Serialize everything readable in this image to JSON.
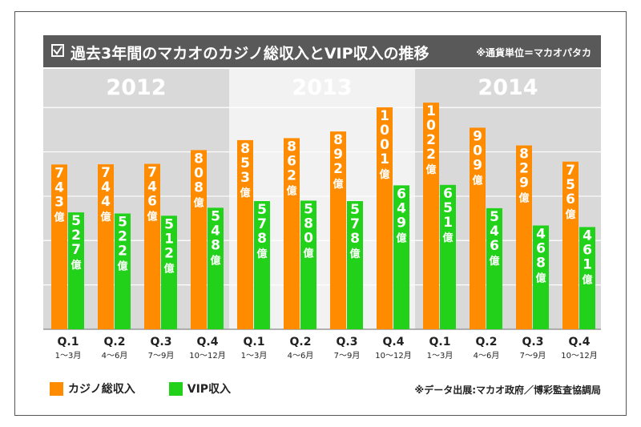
{
  "header": {
    "title": "過去3年間のマカオのカジノ総収入とVIP収入の推移",
    "currency_note": "※通貨単位＝マカオパタカ"
  },
  "legend": {
    "casino_label": "カジノ総収入",
    "vip_label": "VIP収入"
  },
  "source_note": "※データ出展:マカオ政府／博彩監査協調局",
  "colors": {
    "casino": "#FF8C00",
    "vip": "#22D11A",
    "title_bg": "#595959",
    "year_band_dark": "#D9D9D9",
    "year_band_light": "#F2F2F2"
  },
  "chart_data": {
    "type": "bar",
    "years": [
      "2012",
      "2013",
      "2014"
    ],
    "categories": [
      {
        "year": "2012",
        "quarter": "Q.1",
        "months": "1〜3月"
      },
      {
        "year": "2012",
        "quarter": "Q.2",
        "months": "4〜6月"
      },
      {
        "year": "2012",
        "quarter": "Q.3",
        "months": "7〜9月"
      },
      {
        "year": "2012",
        "quarter": "Q.4",
        "months": "10〜12月"
      },
      {
        "year": "2013",
        "quarter": "Q.1",
        "months": "1〜3月"
      },
      {
        "year": "2013",
        "quarter": "Q.2",
        "months": "4〜6月"
      },
      {
        "year": "2013",
        "quarter": "Q.3",
        "months": "7〜9月"
      },
      {
        "year": "2013",
        "quarter": "Q.4",
        "months": "10〜12月"
      },
      {
        "year": "2014",
        "quarter": "Q.1",
        "months": "1〜3月"
      },
      {
        "year": "2014",
        "quarter": "Q.2",
        "months": "4〜6月"
      },
      {
        "year": "2014",
        "quarter": "Q.3",
        "months": "7〜9月"
      },
      {
        "year": "2014",
        "quarter": "Q.4",
        "months": "10〜12月"
      }
    ],
    "series": [
      {
        "name": "カジノ総収入",
        "values": [
          743,
          744,
          746,
          808,
          853,
          862,
          892,
          1001,
          1022,
          909,
          829,
          756
        ]
      },
      {
        "name": "VIP収入",
        "values": [
          527,
          522,
          512,
          548,
          578,
          580,
          578,
          649,
          651,
          546,
          468,
          461
        ]
      }
    ],
    "value_unit": "億",
    "ylim": [
      0,
      1000
    ],
    "grid": true
  }
}
